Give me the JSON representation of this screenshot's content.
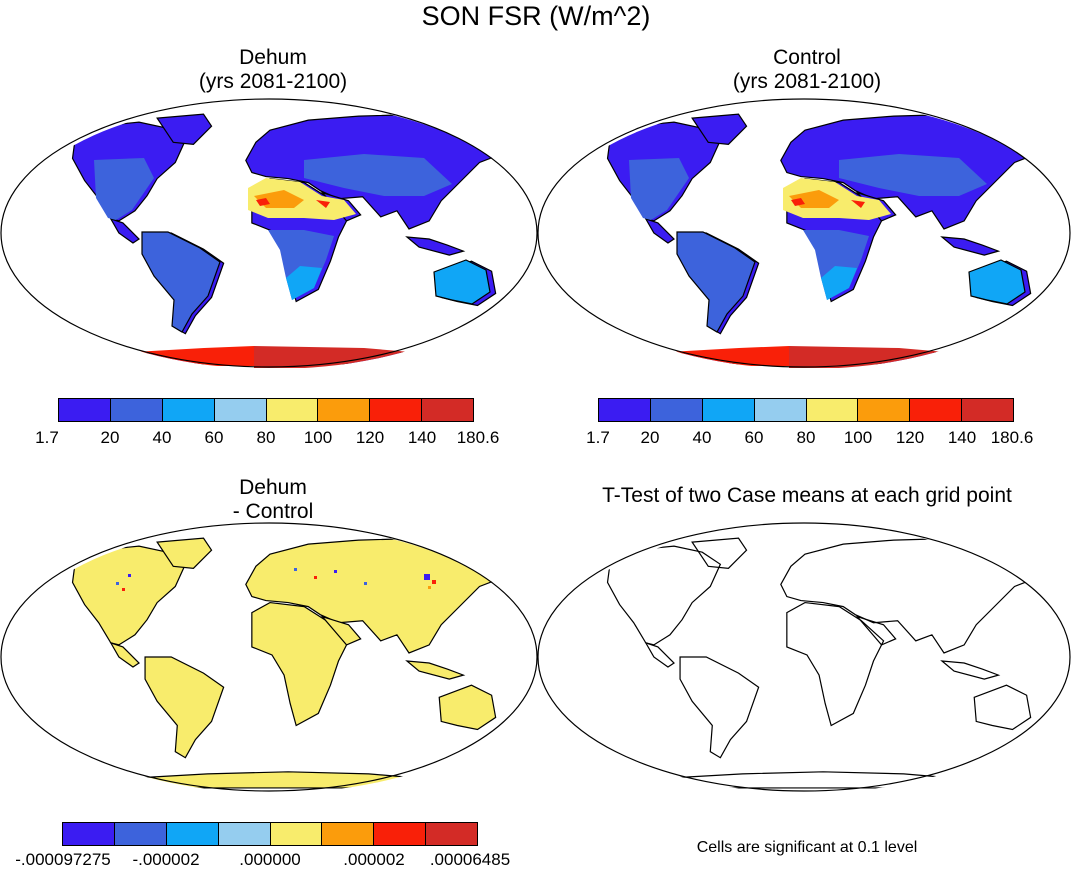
{
  "figure_title": "SON FSR (W/m^2)",
  "panels": {
    "dehum": {
      "title_line1": "Dehum",
      "title_line2": "(yrs 2081-2100)"
    },
    "control": {
      "title_line1": "Control",
      "title_line2": "(yrs 2081-2100)"
    },
    "diff": {
      "title_line1": "Dehum",
      "title_line2": "- Control"
    },
    "ttest": {
      "title": "T-Test of two Case means at each grid point",
      "note": "Cells are significant at 0.1 level"
    }
  },
  "colorbar_main": {
    "colors": [
      "#3b1cf2",
      "#3d63dc",
      "#10a6f6",
      "#95cdef",
      "#f8ec6c",
      "#fb9c0c",
      "#f92008",
      "#d32b26"
    ],
    "labels": [
      "1.7",
      "20",
      "40",
      "60",
      "80",
      "100",
      "120",
      "140",
      "180.6"
    ]
  },
  "colorbar_diff": {
    "colors": [
      "#3b1cf2",
      "#3d63dc",
      "#10a6f6",
      "#95cdef",
      "#f8ec6c",
      "#fb9c0c",
      "#f92008",
      "#d32b26"
    ],
    "labels": [
      "-.000097275",
      "-.000002",
      ".000000",
      ".000002",
      ".00006485"
    ]
  }
}
